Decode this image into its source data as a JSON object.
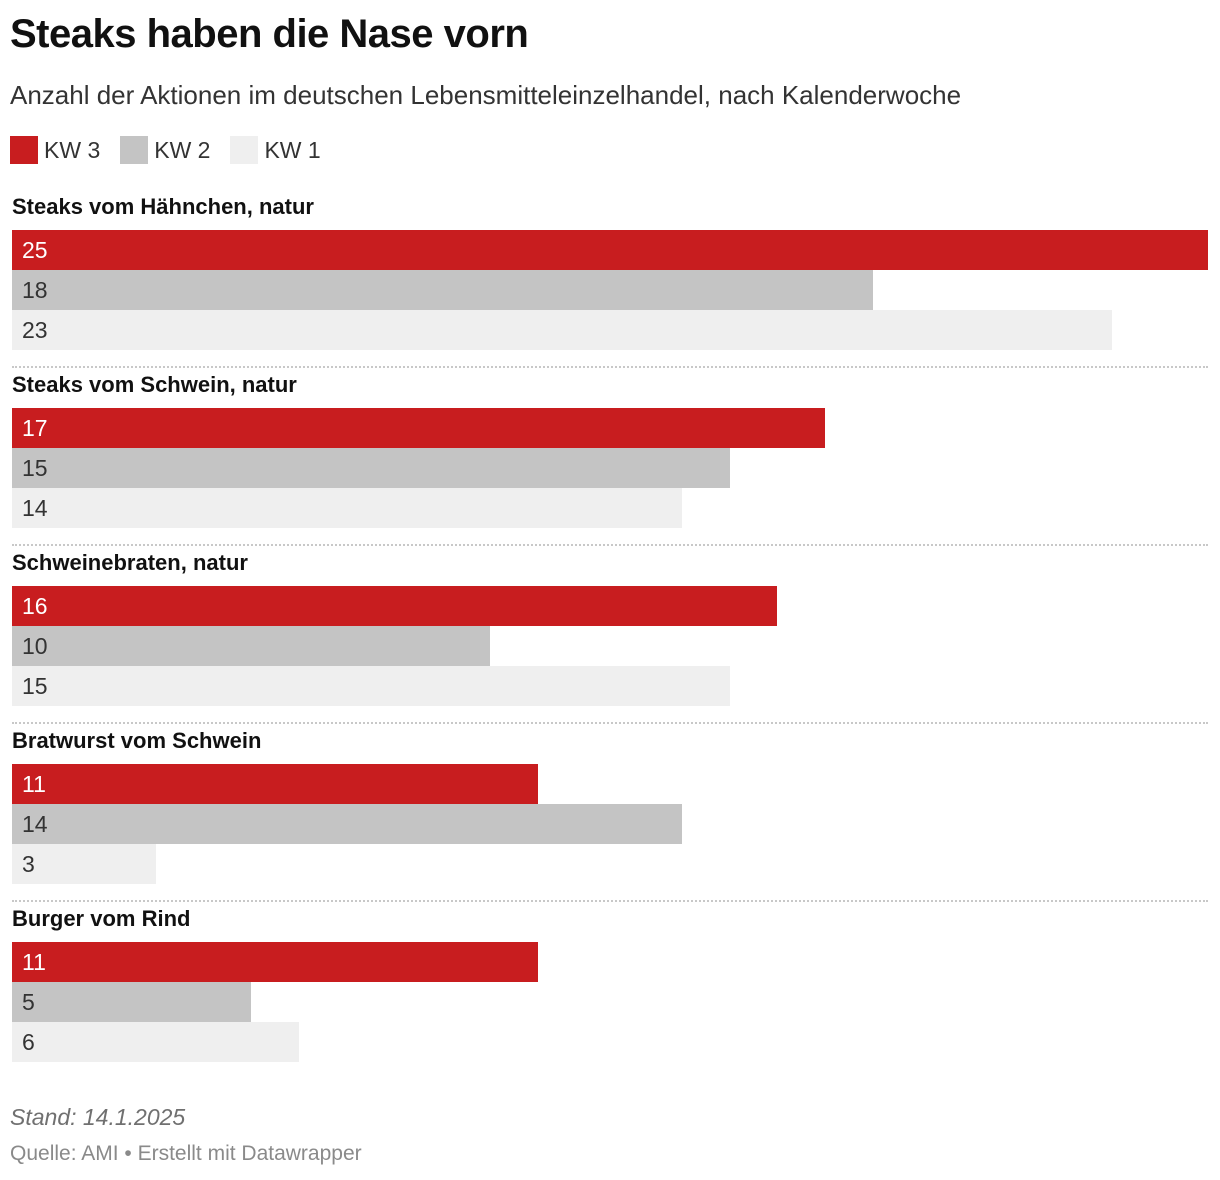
{
  "title": "Steaks haben die Nase vorn",
  "subtitle": "Anzahl der Aktionen im deutschen Lebensmitteleinzelhandel, nach Kalenderwoche",
  "legend": [
    {
      "label": "KW 3",
      "color": "#c81d1f"
    },
    {
      "label": "KW 2",
      "color": "#c4c4c4"
    },
    {
      "label": "KW 1",
      "color": "#efefef"
    }
  ],
  "chart_data": {
    "type": "bar",
    "orientation": "horizontal",
    "grouped": true,
    "xlim": [
      0,
      25
    ],
    "grid": false,
    "legend_position": "top-left",
    "categories": [
      "Steaks vom Hähnchen, natur",
      "Steaks vom Schwein, natur",
      "Schweinebraten, natur",
      "Bratwurst vom Schwein",
      "Burger vom Rind"
    ],
    "series": [
      {
        "name": "KW 3",
        "color": "#c81d1f",
        "values": [
          25,
          17,
          16,
          11,
          11
        ]
      },
      {
        "name": "KW 2",
        "color": "#c4c4c4",
        "values": [
          18,
          15,
          10,
          14,
          5
        ]
      },
      {
        "name": "KW 1",
        "color": "#efefef",
        "values": [
          23,
          14,
          15,
          3,
          6
        ]
      }
    ]
  },
  "footer": {
    "stand": "Stand: 14.1.2025",
    "source": "Quelle: AMI • Erstellt mit Datawrapper"
  }
}
